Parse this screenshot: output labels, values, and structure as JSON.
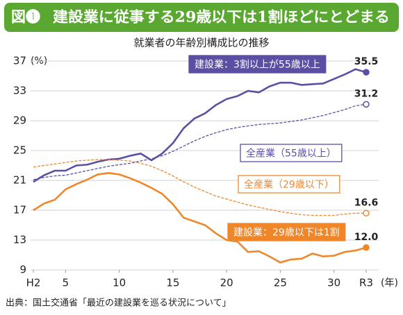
{
  "chart_data": {
    "type": "line",
    "figure_label": "図❶",
    "title": "建設業に従事する29歳以下は1割ほどにとどまる",
    "subtitle": "就業者の年齢別構成比の推移",
    "y_label": "(%)",
    "x_label": "(年)",
    "source": "出典：国土交通省「最近の建設業を巡る状況について」",
    "x": [
      2,
      3,
      4,
      5,
      6,
      7,
      8,
      9,
      10,
      11,
      12,
      13,
      14,
      15,
      16,
      17,
      18,
      19,
      20,
      21,
      22,
      23,
      24,
      25,
      26,
      27,
      28,
      29,
      30,
      31,
      32,
      33
    ],
    "xlim": [
      2,
      33
    ],
    "xticks": [
      {
        "value": 2,
        "label": "H2"
      },
      5,
      10,
      15,
      20,
      25,
      30,
      {
        "value": 33,
        "label": "R3"
      }
    ],
    "ylim": [
      9,
      37
    ],
    "yticks": [
      9,
      13,
      17,
      21,
      25,
      29,
      33,
      37
    ],
    "grid": true,
    "series": [
      {
        "name": "建設業：3割以上が55歳以上",
        "color": "#5b4fa3",
        "dashed": false,
        "label_style": "filled",
        "values": [
          20.8,
          21.7,
          22.3,
          22.3,
          23.0,
          23.1,
          23.5,
          23.8,
          23.9,
          24.3,
          24.6,
          23.7,
          24.6,
          26.0,
          28.0,
          29.3,
          30.0,
          31.1,
          31.9,
          32.3,
          33.0,
          32.8,
          33.6,
          34.1,
          34.1,
          33.8,
          33.9,
          34.0,
          34.6,
          35.2,
          35.9,
          35.5
        ],
        "value_labels": [
          null,
          null,
          null,
          null,
          null,
          null,
          null,
          null,
          null,
          null,
          null,
          null,
          null,
          null,
          null,
          null,
          null,
          null,
          null,
          null,
          null,
          null,
          null,
          null,
          null,
          null,
          null,
          null,
          null,
          null,
          null,
          "35.5"
        ]
      },
      {
        "name": "全産業（55歳以上）",
        "color": "#5b4fa3",
        "dashed": true,
        "label_style": "outline",
        "values": [
          21.1,
          21.4,
          21.6,
          21.7,
          22.0,
          22.3,
          22.6,
          22.9,
          23.1,
          23.3,
          23.6,
          23.9,
          24.3,
          24.9,
          25.6,
          26.3,
          26.9,
          27.4,
          27.8,
          28.1,
          28.3,
          28.5,
          28.6,
          28.7,
          28.9,
          29.1,
          29.4,
          29.7,
          30.1,
          30.5,
          31.0,
          31.2
        ],
        "value_labels": [
          null,
          null,
          null,
          null,
          null,
          null,
          null,
          null,
          null,
          null,
          null,
          null,
          null,
          null,
          null,
          null,
          null,
          null,
          null,
          null,
          null,
          null,
          null,
          null,
          null,
          null,
          null,
          null,
          null,
          null,
          null,
          "31.2"
        ]
      },
      {
        "name": "全産業（29歳以下）",
        "color": "#f0862a",
        "dashed": true,
        "label_style": "outline",
        "values": [
          22.8,
          23.0,
          23.2,
          23.4,
          23.6,
          23.7,
          23.8,
          23.8,
          23.7,
          23.6,
          23.3,
          22.9,
          22.3,
          21.6,
          20.8,
          20.1,
          19.5,
          18.9,
          18.5,
          18.1,
          17.7,
          17.4,
          17.1,
          16.8,
          16.6,
          16.4,
          16.3,
          16.3,
          16.3,
          16.5,
          16.6,
          16.6
        ],
        "value_labels": [
          null,
          null,
          null,
          null,
          null,
          null,
          null,
          null,
          null,
          null,
          null,
          null,
          null,
          null,
          null,
          null,
          null,
          null,
          null,
          null,
          null,
          null,
          null,
          null,
          null,
          null,
          null,
          null,
          null,
          null,
          null,
          "16.6"
        ]
      },
      {
        "name": "建設業：29歳以下は1割",
        "color": "#f0862a",
        "dashed": false,
        "label_style": "filled",
        "values": [
          17.0,
          17.9,
          18.4,
          19.8,
          20.5,
          21.1,
          21.8,
          22.0,
          21.8,
          21.3,
          20.7,
          20.0,
          19.2,
          17.8,
          16.0,
          15.5,
          15.0,
          13.9,
          13.0,
          12.8,
          11.4,
          11.5,
          10.8,
          10.0,
          10.4,
          10.5,
          11.2,
          10.8,
          10.9,
          11.4,
          11.6,
          12.0
        ],
        "value_labels": [
          null,
          null,
          null,
          null,
          null,
          null,
          null,
          null,
          null,
          null,
          null,
          null,
          null,
          null,
          null,
          null,
          null,
          null,
          null,
          null,
          null,
          null,
          null,
          null,
          null,
          null,
          null,
          null,
          null,
          null,
          null,
          "12.0"
        ]
      }
    ]
  }
}
